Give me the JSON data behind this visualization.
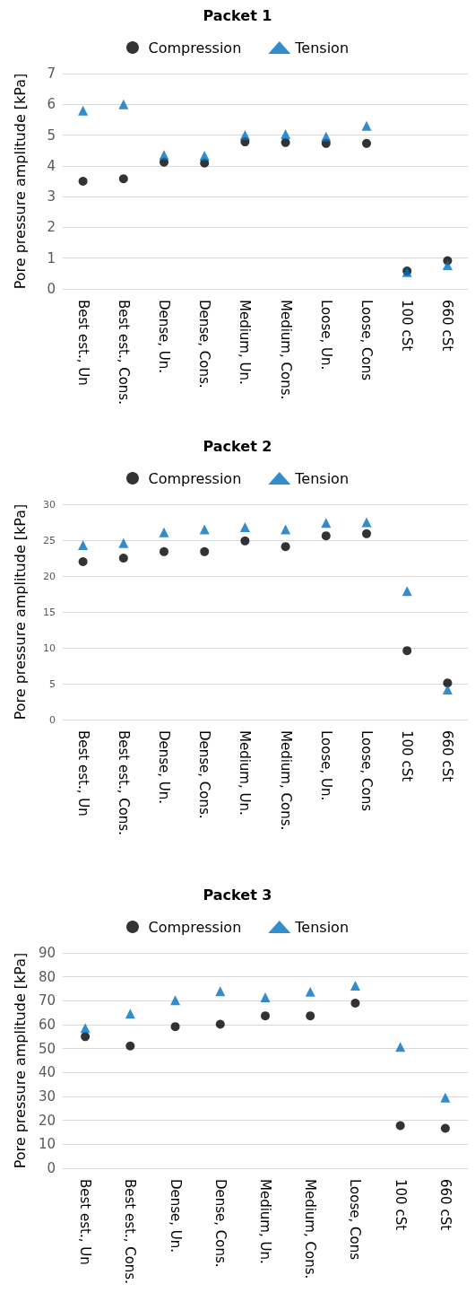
{
  "chart_data": [
    {
      "type": "scatter",
      "title": "Packet 1",
      "ylabel": "Pore pressure amplitude [kPa]",
      "categories": [
        "Best est., Un",
        "Best est., Cons.",
        "Dense, Un.",
        "Dense, Cons.",
        "Medium, Un.",
        "Medium, Cons.",
        "Loose, Un.",
        "Loose, Cons",
        "100 cSt",
        "660 cSt"
      ],
      "ylim": [
        0,
        7
      ],
      "yticks": [
        0,
        1,
        2,
        3,
        4,
        5,
        6,
        7
      ],
      "grid": "y",
      "legend": "top",
      "series": [
        {
          "name": "Compression",
          "color": "#000000",
          "marker": "circle",
          "values": [
            3.5,
            3.58,
            4.12,
            4.09,
            4.78,
            4.76,
            4.73,
            4.73,
            0.58,
            0.92
          ]
        },
        {
          "name": "Tension",
          "color": "#0070c0",
          "marker": "triangle",
          "values": [
            5.8,
            6.0,
            4.35,
            4.33,
            5.0,
            5.03,
            4.95,
            5.3,
            0.55,
            0.77
          ]
        }
      ]
    },
    {
      "type": "scatter",
      "title": "Packet 2",
      "ylabel": "Pore pressure amplitude [kPa]",
      "categories": [
        "Best est., Un",
        "Best est., Cons.",
        "Dense, Un.",
        "Dense, Cons.",
        "Medium, Un.",
        "Medium, Cons.",
        "Loose, Un.",
        "Loose, Cons",
        "100 cSt",
        "660 cSt"
      ],
      "ylim": [
        0,
        30
      ],
      "yticks": [
        0,
        5,
        10,
        15,
        20,
        25,
        30
      ],
      "grid": "y",
      "legend": "top",
      "series": [
        {
          "name": "Compression",
          "color": "#000000",
          "marker": "circle",
          "values": [
            22.0,
            22.5,
            23.4,
            23.4,
            24.9,
            24.1,
            25.6,
            25.9,
            9.6,
            5.1
          ]
        },
        {
          "name": "Tension",
          "color": "#0070c0",
          "marker": "triangle",
          "values": [
            24.3,
            24.6,
            26.1,
            26.5,
            26.8,
            26.5,
            27.4,
            27.5,
            17.9,
            4.2
          ]
        }
      ]
    },
    {
      "type": "scatter",
      "title": "Packet 3",
      "ylabel": "Pore pressure amplitude [kPa]",
      "categories": [
        "Best est., Un",
        "Best est., Cons.",
        "Dense, Un.",
        "Dense, Cons.",
        "Medium, Un.",
        "Medium, Cons.",
        "Loose, Cons",
        "100 cSt",
        "660 cSt"
      ],
      "ylim": [
        0,
        90
      ],
      "yticks": [
        0,
        10,
        20,
        30,
        40,
        50,
        60,
        70,
        80,
        90
      ],
      "grid": "y",
      "legend": "top",
      "series": [
        {
          "name": "Compression",
          "color": "#000000",
          "marker": "circle",
          "values": [
            55.0,
            51.1,
            59.2,
            60.2,
            63.7,
            63.7,
            69.0,
            17.8,
            16.7
          ]
        },
        {
          "name": "Tension",
          "color": "#0070c0",
          "marker": "triangle",
          "values": [
            58.6,
            64.6,
            70.2,
            74.0,
            71.4,
            73.8,
            76.3,
            50.7,
            29.5
          ]
        }
      ]
    }
  ]
}
